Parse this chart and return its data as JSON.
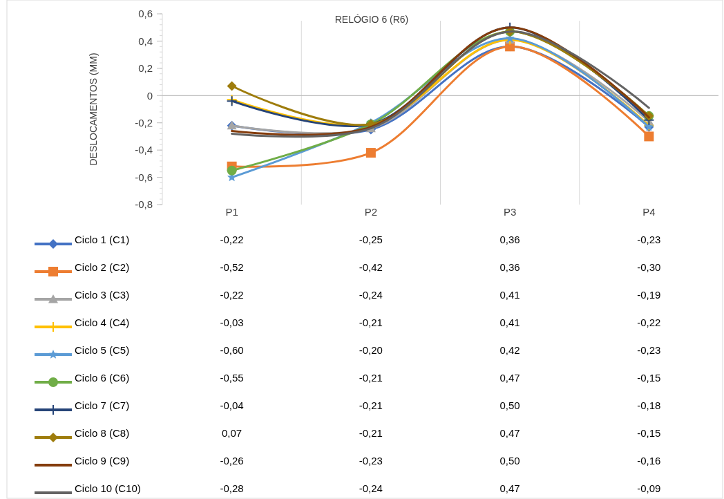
{
  "chart_data": {
    "type": "line",
    "title": "RELÓGIO 6 (R6)",
    "ylabel": "DESLOCAMENTOS (MM)",
    "categories": [
      "P1",
      "P2",
      "P3",
      "P4"
    ],
    "ylim": [
      -0.8,
      0.6
    ],
    "yticks": [
      {
        "value": 0.6,
        "label": "0,6"
      },
      {
        "value": 0.4,
        "label": "0,4"
      },
      {
        "value": 0.2,
        "label": "0,2"
      },
      {
        "value": 0,
        "label": "0"
      },
      {
        "value": -0.2,
        "label": "-0,2"
      },
      {
        "value": -0.4,
        "label": "-0,4"
      },
      {
        "value": -0.6,
        "label": "-0,6"
      },
      {
        "value": -0.8,
        "label": "-0,8"
      }
    ],
    "grid": "x",
    "legend": "bottom",
    "series": [
      {
        "name": "Ciclo 1 (C1)",
        "color": "#4472c4",
        "marker": "diamond",
        "values": [
          -0.22,
          -0.25,
          0.36,
          -0.23
        ],
        "value_labels": [
          "-0,22",
          "-0,25",
          "0,36",
          "-0,23"
        ]
      },
      {
        "name": "Ciclo 2 (C2)",
        "color": "#ed7d31",
        "marker": "square",
        "values": [
          -0.52,
          -0.42,
          0.36,
          -0.3
        ],
        "value_labels": [
          "-0,52",
          "-0,42",
          "0,36",
          "-0,30"
        ]
      },
      {
        "name": "Ciclo 3 (C3)",
        "color": "#a5a5a5",
        "marker": "triangle",
        "values": [
          -0.22,
          -0.24,
          0.41,
          -0.19
        ],
        "value_labels": [
          "-0,22",
          "-0,24",
          "0,41",
          "-0,19"
        ]
      },
      {
        "name": "Ciclo 4 (C4)",
        "color": "#ffc000",
        "marker": "cross",
        "values": [
          -0.03,
          -0.21,
          0.41,
          -0.22
        ],
        "value_labels": [
          "-0,03",
          "-0,21",
          "0,41",
          "-0,22"
        ]
      },
      {
        "name": "Ciclo 5 (C5)",
        "color": "#5b9bd5",
        "marker": "star",
        "values": [
          -0.6,
          -0.2,
          0.42,
          -0.23
        ],
        "value_labels": [
          "-0,60",
          "-0,20",
          "0,42",
          "-0,23"
        ]
      },
      {
        "name": "Ciclo 6 (C6)",
        "color": "#70ad47",
        "marker": "circle",
        "values": [
          -0.55,
          -0.21,
          0.47,
          -0.15
        ],
        "value_labels": [
          "-0,55",
          "-0,21",
          "0,47",
          "-0,15"
        ]
      },
      {
        "name": "Ciclo 7 (C7)",
        "color": "#264478",
        "marker": "cross",
        "values": [
          -0.04,
          -0.21,
          0.5,
          -0.18
        ],
        "value_labels": [
          "-0,04",
          "-0,21",
          "0,50",
          "-0,18"
        ]
      },
      {
        "name": "Ciclo 8 (C8)",
        "color": "#9e7c0c",
        "marker": "diamond",
        "values": [
          0.07,
          -0.21,
          0.47,
          -0.15
        ],
        "value_labels": [
          "0,07",
          "-0,21",
          "0,47",
          "-0,15"
        ]
      },
      {
        "name": "Ciclo 9 (C9)",
        "color": "#843c0c",
        "marker": "none",
        "values": [
          -0.26,
          -0.23,
          0.5,
          -0.16
        ],
        "value_labels": [
          "-0,26",
          "-0,23",
          "0,50",
          "-0,16"
        ]
      },
      {
        "name": "Ciclo 10 (C10)",
        "color": "#636363",
        "marker": "none",
        "values": [
          -0.28,
          -0.24,
          0.47,
          -0.09
        ],
        "value_labels": [
          "-0,28",
          "-0,24",
          "0,47",
          "-0,09"
        ]
      }
    ]
  }
}
